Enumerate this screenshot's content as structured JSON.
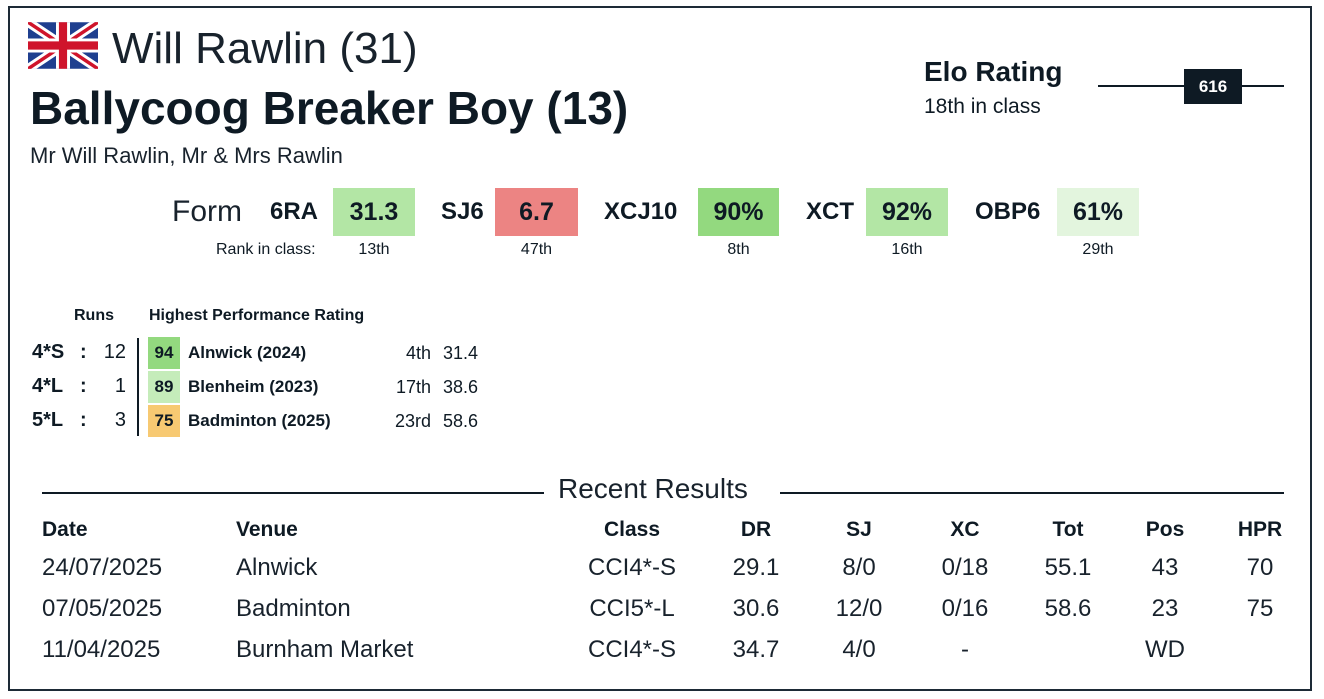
{
  "header": {
    "flag_icon": "uk-flag-icon",
    "rider": "Will Rawlin (31)",
    "horse": "Ballycoog Breaker Boy (13)",
    "owners": "Mr Will Rawlin, Mr & Mrs Rawlin"
  },
  "elo": {
    "title": "Elo Rating",
    "class_rank": "18th in class",
    "value": "616"
  },
  "form": {
    "label": "Form",
    "rank_label": "Rank in class:",
    "metrics": [
      {
        "name": "6RA",
        "value": "31.3",
        "rank": "13th",
        "color": "#b3e6a5"
      },
      {
        "name": "SJ6",
        "value": "6.7",
        "rank": "47th",
        "color": "#ec8483"
      },
      {
        "name": "XCJ10",
        "value": "90%",
        "rank": "8th",
        "color": "#93d97f"
      },
      {
        "name": "XCT",
        "value": "92%",
        "rank": "16th",
        "color": "#b3e6a5"
      },
      {
        "name": "OBP6",
        "value": "61%",
        "rank": "29th",
        "color": "#e3f5de"
      }
    ]
  },
  "performance": {
    "runs_header": "Runs",
    "hpr_header": "Highest Performance Rating",
    "rows": [
      {
        "level": "4*S",
        "colon": ":",
        "runs": "12",
        "hpr": "94",
        "event": "Alnwick (2024)",
        "pos": "4th",
        "score": "31.4",
        "color": "#93d97f"
      },
      {
        "level": "4*L",
        "colon": ":",
        "runs": "1",
        "hpr": "89",
        "event": "Blenheim (2023)",
        "pos": "17th",
        "score": "38.6",
        "color": "#c5ecba"
      },
      {
        "level": "5*L",
        "colon": ":",
        "runs": "3",
        "hpr": "75",
        "event": "Badminton (2025)",
        "pos": "23rd",
        "score": "58.6",
        "color": "#f7c972"
      }
    ]
  },
  "results": {
    "title": "Recent Results",
    "headers": {
      "date": "Date",
      "venue": "Venue",
      "class": "Class",
      "dr": "DR",
      "sj": "SJ",
      "xc": "XC",
      "tot": "Tot",
      "pos": "Pos",
      "hpr": "HPR"
    },
    "rows": [
      {
        "date": "24/07/2025",
        "venue": "Alnwick",
        "class": "CCI4*-S",
        "dr": "29.1",
        "sj": "8/0",
        "xc": "0/18",
        "tot": "55.1",
        "pos": "43",
        "hpr": "70"
      },
      {
        "date": "07/05/2025",
        "venue": "Badminton",
        "class": "CCI5*-L",
        "dr": "30.6",
        "sj": "12/0",
        "xc": "0/16",
        "tot": "58.6",
        "pos": "23",
        "hpr": "75"
      },
      {
        "date": "11/04/2025",
        "venue": "Burnham Market",
        "class": "CCI4*-S",
        "dr": "34.7",
        "sj": "4/0",
        "xc": "-",
        "tot": "",
        "pos": "WD",
        "hpr": ""
      }
    ]
  }
}
